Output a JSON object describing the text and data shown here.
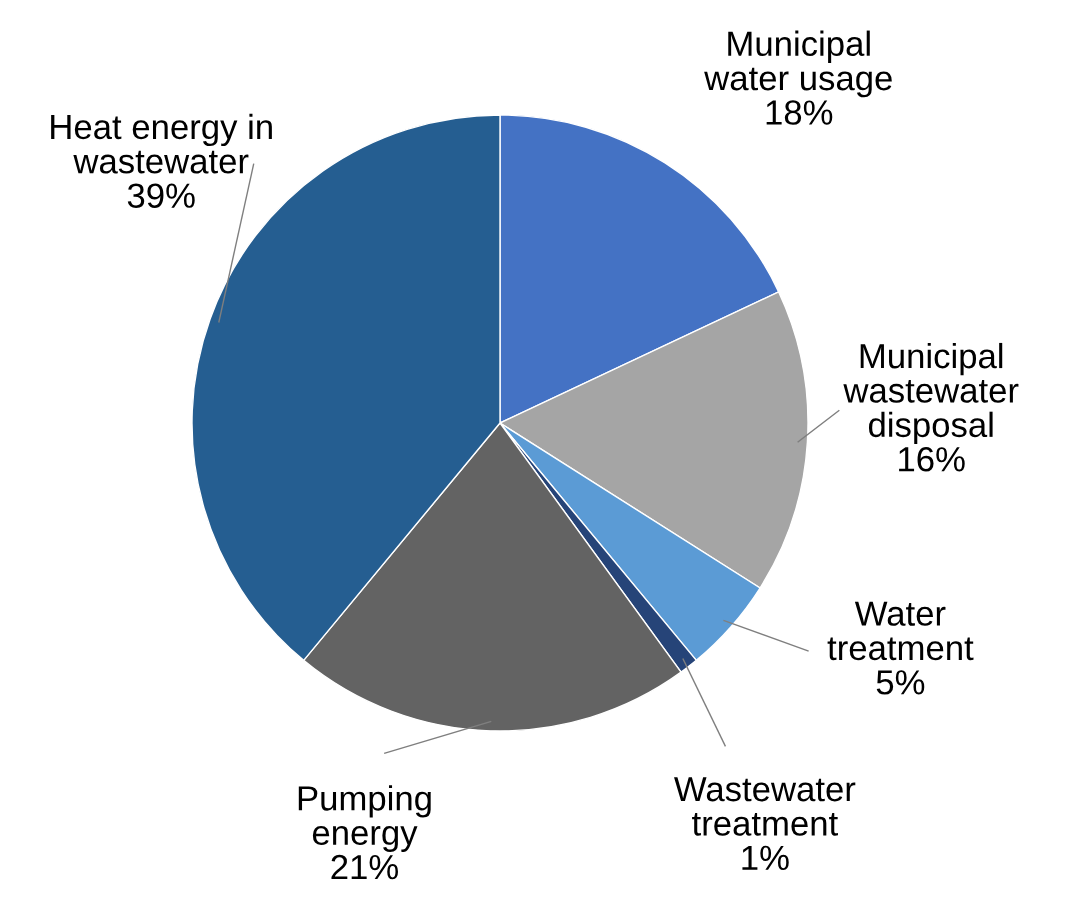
{
  "chart_data": {
    "type": "pie",
    "categories": [
      "Municipal\nwater usage",
      "Municipal\nwastewater\ndisposal",
      "Water\ntreatment",
      "Wastewater\ntreatment",
      "Pumping\nenergy",
      "Heat energy in\nwastewater"
    ],
    "values": [
      18,
      16,
      5,
      1,
      21,
      39
    ],
    "value_labels": [
      "18%",
      "16%",
      "5%",
      "1%",
      "21%",
      "39%"
    ],
    "colors": [
      "#4472c4",
      "#a5a5a5",
      "#5b9bd5",
      "#264478",
      "#636363",
      "#255e91"
    ],
    "legend": false
  }
}
